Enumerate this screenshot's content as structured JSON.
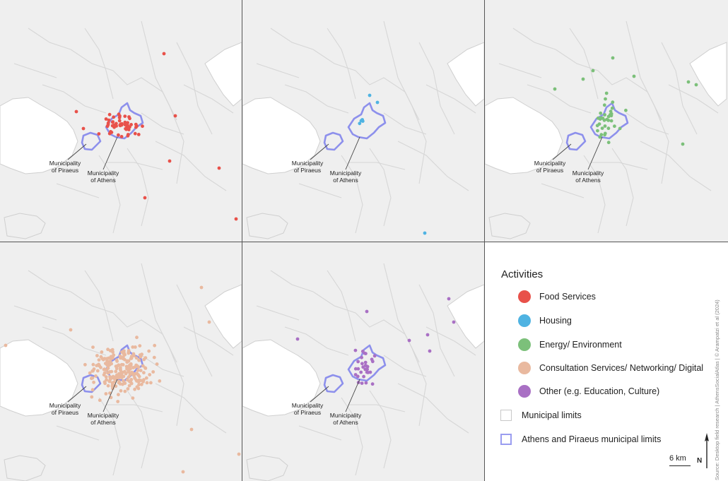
{
  "panels": [
    {
      "category": "food",
      "color": "#e8514a",
      "annotations": {
        "piraeus": [
          "Municipality",
          "of Piraeus"
        ],
        "athens": [
          "Municipality",
          "of Athens"
        ]
      }
    },
    {
      "category": "housing",
      "color": "#4fb3e2",
      "annotations": {
        "piraeus": [
          "Municipality",
          "of Piraeus"
        ],
        "athens": [
          "Municipality",
          "of Athens"
        ]
      }
    },
    {
      "category": "energy",
      "color": "#7cc07a",
      "annotations": {
        "piraeus": [
          "Municipality",
          "of Piraeus"
        ],
        "athens": [
          "Municipality",
          "of Athens"
        ]
      }
    },
    {
      "category": "consultation",
      "color": "#e9b99f",
      "annotations": {
        "piraeus": [
          "Municipality",
          "of Piraeus"
        ],
        "athens": [
          "Municipality",
          "of Athens"
        ]
      }
    },
    {
      "category": "other",
      "color": "#a970c4",
      "annotations": {
        "piraeus": [
          "Municipality",
          "of Piraeus"
        ],
        "athens": [
          "Municipality",
          "of Athens"
        ]
      }
    }
  ],
  "legend": {
    "title": "Activities",
    "items": [
      {
        "label": "Food Services",
        "color": "#e8514a"
      },
      {
        "label": "Housing",
        "color": "#4fb3e2"
      },
      {
        "label": "Energy/ Environment",
        "color": "#7cc07a"
      },
      {
        "label": "Consultation Services/ Networking/ Digital",
        "color": "#e9b99f"
      },
      {
        "label": "Other (e.g. Education, Culture)",
        "color": "#a970c4"
      }
    ],
    "municipal_limits": "Municipal limits",
    "athens_piraeus_limits": "Athens and Piraeus municipal limits",
    "municipal_color": "#c8c8c8",
    "highlight_color": "#9a9df0"
  },
  "scale": {
    "label": "6 km"
  },
  "north": {
    "label": "N"
  },
  "source": "Source: Desktop field research | AthensSocialAtlas | © Arampatzi et al (2024)"
}
